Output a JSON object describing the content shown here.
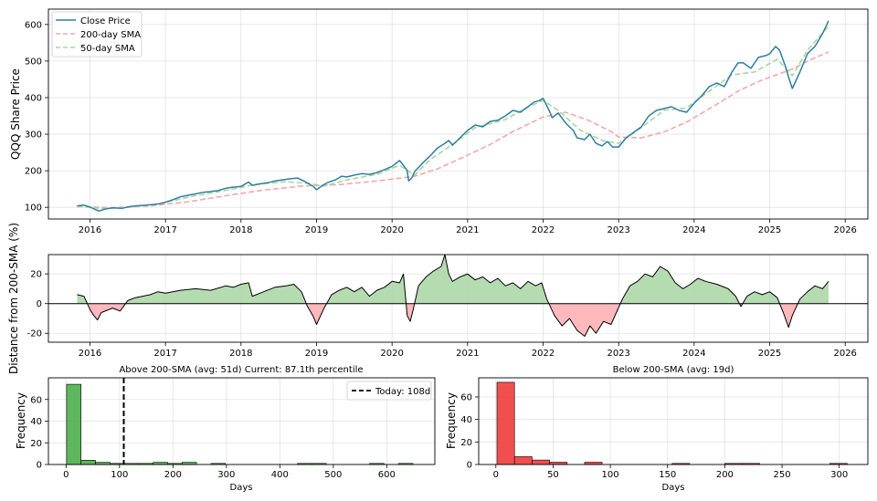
{
  "chart_data": [
    {
      "id": "price",
      "type": "line",
      "ylabel": "QQQ Share Price",
      "x_ticks": [
        "2016",
        "2017",
        "2018",
        "2019",
        "2020",
        "2021",
        "2022",
        "2023",
        "2024",
        "2025",
        "2026"
      ],
      "y_ticks": [
        100,
        200,
        300,
        400,
        500,
        600
      ],
      "xlim": [
        2015.45,
        2026.3
      ],
      "ylim": [
        68,
        642
      ],
      "grid": true,
      "legend_position": "top-left",
      "colors": {
        "close": "#2e7f9f",
        "sma200": "#f4a7ad",
        "sma50": "#a8d5a2"
      },
      "series": [
        {
          "name": "Close Price",
          "key": "close",
          "x": [
            2015.83,
            2015.92,
            2016.0,
            2016.08,
            2016.12,
            2016.2,
            2016.3,
            2016.42,
            2016.5,
            2016.6,
            2016.75,
            2016.85,
            2016.92,
            2017.0,
            2017.1,
            2017.2,
            2017.3,
            2017.4,
            2017.5,
            2017.6,
            2017.7,
            2017.8,
            2017.9,
            2018.0,
            2018.1,
            2018.15,
            2018.25,
            2018.35,
            2018.45,
            2018.55,
            2018.65,
            2018.75,
            2018.85,
            2018.95,
            2019.0,
            2019.08,
            2019.15,
            2019.25,
            2019.33,
            2019.4,
            2019.5,
            2019.6,
            2019.7,
            2019.8,
            2019.9,
            2020.0,
            2020.1,
            2020.15,
            2020.2,
            2020.22,
            2020.26,
            2020.3,
            2020.4,
            2020.5,
            2020.6,
            2020.7,
            2020.75,
            2020.8,
            2020.9,
            2021.0,
            2021.1,
            2021.2,
            2021.3,
            2021.4,
            2021.5,
            2021.6,
            2021.7,
            2021.8,
            2021.88,
            2021.95,
            2022.0,
            2022.08,
            2022.12,
            2022.2,
            2022.3,
            2022.4,
            2022.45,
            2022.55,
            2022.62,
            2022.7,
            2022.78,
            2022.85,
            2022.92,
            2023.0,
            2023.1,
            2023.2,
            2023.3,
            2023.4,
            2023.5,
            2023.6,
            2023.7,
            2023.8,
            2023.9,
            2024.0,
            2024.1,
            2024.2,
            2024.3,
            2024.4,
            2024.5,
            2024.58,
            2024.65,
            2024.75,
            2024.85,
            2024.95,
            2025.0,
            2025.08,
            2025.13,
            2025.2,
            2025.26,
            2025.3,
            2025.4,
            2025.5,
            2025.6,
            2025.7,
            2025.78
          ],
          "y": [
            104,
            106,
            101,
            93,
            90,
            95,
            99,
            97,
            101,
            104,
            106,
            108,
            110,
            114,
            121,
            129,
            133,
            137,
            141,
            143,
            146,
            152,
            155,
            157,
            169,
            160,
            164,
            167,
            172,
            175,
            178,
            180,
            170,
            158,
            148,
            160,
            168,
            175,
            185,
            183,
            188,
            192,
            190,
            195,
            203,
            212,
            228,
            215,
            200,
            172,
            180,
            198,
            220,
            240,
            262,
            275,
            283,
            270,
            290,
            310,
            325,
            320,
            335,
            338,
            350,
            365,
            360,
            375,
            388,
            392,
            398,
            365,
            345,
            358,
            330,
            310,
            290,
            285,
            300,
            275,
            268,
            280,
            265,
            265,
            290,
            305,
            320,
            350,
            365,
            370,
            375,
            365,
            360,
            385,
            405,
            430,
            440,
            430,
            470,
            495,
            495,
            480,
            510,
            515,
            520,
            540,
            530,
            490,
            450,
            425,
            470,
            520,
            540,
            575,
            610
          ]
        },
        {
          "name": "200-day SMA",
          "key": "sma200",
          "x": [
            2015.83,
            2016.3,
            2016.8,
            2017.3,
            2017.8,
            2018.3,
            2018.8,
            2019.3,
            2019.8,
            2020.3,
            2020.6,
            2020.9,
            2021.3,
            2021.6,
            2022.0,
            2022.3,
            2022.6,
            2022.9,
            2023.0,
            2023.3,
            2023.6,
            2023.9,
            2024.3,
            2024.6,
            2024.9,
            2025.3,
            2025.5,
            2025.78
          ],
          "y": [
            102,
            99,
            104,
            115,
            132,
            147,
            158,
            162,
            172,
            185,
            205,
            233,
            272,
            307,
            347,
            360,
            338,
            307,
            292,
            290,
            306,
            333,
            382,
            420,
            448,
            478,
            500,
            525
          ]
        },
        {
          "name": "50-day SMA",
          "key": "sma50",
          "x": [
            2015.83,
            2016.2,
            2016.5,
            2016.9,
            2017.4,
            2017.9,
            2018.2,
            2018.6,
            2018.9,
            2019.1,
            2019.4,
            2019.8,
            2020.1,
            2020.3,
            2020.5,
            2020.8,
            2021.1,
            2021.5,
            2021.8,
            2022.0,
            2022.2,
            2022.5,
            2022.8,
            2023.0,
            2023.3,
            2023.6,
            2023.9,
            2024.2,
            2024.5,
            2024.8,
            2025.1,
            2025.3,
            2025.5,
            2025.78
          ],
          "y": [
            103,
            96,
            100,
            109,
            132,
            150,
            163,
            170,
            165,
            158,
            175,
            190,
            215,
            188,
            230,
            272,
            318,
            340,
            375,
            392,
            365,
            310,
            282,
            275,
            318,
            365,
            372,
            418,
            462,
            470,
            505,
            460,
            530,
            595
          ]
        }
      ]
    },
    {
      "id": "distance",
      "type": "area",
      "ylabel": "Distance from 200-SMA (%)",
      "x_ticks": [
        "2016",
        "2017",
        "2018",
        "2019",
        "2020",
        "2021",
        "2022",
        "2023",
        "2024",
        "2025",
        "2026"
      ],
      "y_ticks": [
        -20,
        0,
        20
      ],
      "xlim": [
        2015.45,
        2026.3
      ],
      "ylim": [
        -26,
        33
      ],
      "grid": true,
      "colors": {
        "positive": "#a8d5a2",
        "negative": "#ffadb2",
        "line": "#000000"
      },
      "series": [
        {
          "name": "Distance",
          "x": [
            2015.83,
            2015.92,
            2016.0,
            2016.05,
            2016.1,
            2016.15,
            2016.3,
            2016.4,
            2016.5,
            2016.6,
            2016.8,
            2016.9,
            2017.0,
            2017.2,
            2017.4,
            2017.6,
            2017.8,
            2017.9,
            2018.0,
            2018.1,
            2018.15,
            2018.3,
            2018.45,
            2018.6,
            2018.7,
            2018.8,
            2018.88,
            2018.95,
            2019.0,
            2019.1,
            2019.2,
            2019.3,
            2019.4,
            2019.5,
            2019.6,
            2019.7,
            2019.8,
            2019.9,
            2020.0,
            2020.1,
            2020.15,
            2020.2,
            2020.24,
            2020.28,
            2020.35,
            2020.45,
            2020.55,
            2020.65,
            2020.7,
            2020.75,
            2020.8,
            2020.9,
            2021.0,
            2021.1,
            2021.2,
            2021.3,
            2021.4,
            2021.5,
            2021.6,
            2021.7,
            2021.8,
            2021.9,
            2021.98,
            2022.05,
            2022.15,
            2022.25,
            2022.35,
            2022.45,
            2022.55,
            2022.62,
            2022.7,
            2022.8,
            2022.9,
            2022.97,
            2023.05,
            2023.15,
            2023.25,
            2023.35,
            2023.45,
            2023.55,
            2023.65,
            2023.75,
            2023.85,
            2023.95,
            2024.05,
            2024.15,
            2024.3,
            2024.45,
            2024.55,
            2024.62,
            2024.7,
            2024.8,
            2024.9,
            2025.0,
            2025.1,
            2025.18,
            2025.25,
            2025.3,
            2025.4,
            2025.5,
            2025.6,
            2025.7,
            2025.78
          ],
          "y": [
            6,
            5,
            -4,
            -8,
            -11,
            -6,
            -3,
            -5,
            2,
            4,
            6,
            8,
            7,
            9,
            10,
            9,
            12,
            11,
            13,
            14,
            5,
            8,
            11,
            12,
            13,
            8,
            -2,
            -8,
            -14,
            -3,
            6,
            9,
            11,
            8,
            11,
            5,
            9,
            11,
            15,
            14,
            20,
            -8,
            -12,
            -4,
            12,
            18,
            22,
            25,
            33,
            20,
            15,
            18,
            20,
            16,
            18,
            14,
            17,
            12,
            14,
            10,
            15,
            12,
            14,
            3,
            -8,
            -15,
            -10,
            -18,
            -22,
            -15,
            -20,
            -12,
            -14,
            -6,
            3,
            12,
            15,
            20,
            18,
            25,
            22,
            14,
            10,
            13,
            17,
            15,
            13,
            10,
            5,
            -2,
            5,
            8,
            6,
            8,
            4,
            -6,
            -16,
            -8,
            3,
            8,
            12,
            10,
            15
          ]
        }
      ]
    },
    {
      "id": "hist_above",
      "type": "bar",
      "title": "Above 200-SMA (avg: 51d) Current: 87.1th percentile",
      "xlabel": "Days",
      "ylabel": "Frequency",
      "x_ticks": [
        0,
        100,
        200,
        300,
        400,
        500,
        600
      ],
      "y_ticks": [
        0,
        20,
        40,
        60
      ],
      "xlim": [
        -33,
        690
      ],
      "ylim": [
        0,
        80
      ],
      "bin_width": 27,
      "bin_starts": [
        1,
        28,
        55,
        82,
        109,
        136,
        163,
        190,
        217,
        244,
        271,
        298,
        325,
        352,
        379,
        406,
        433,
        460,
        487,
        514,
        541,
        568,
        595,
        622,
        649
      ],
      "values": [
        74,
        4,
        2,
        1,
        1,
        1,
        2,
        1,
        2,
        0,
        1,
        0,
        0,
        0,
        0,
        0,
        1,
        1,
        0,
        0,
        0,
        1,
        0,
        1,
        0
      ],
      "color": "#4daf4a",
      "marker": {
        "label": "Today: 108d",
        "value": 108
      },
      "legend_position": "top-right"
    },
    {
      "id": "hist_below",
      "type": "bar",
      "title": "Below 200-SMA (avg: 19d)",
      "xlabel": "Days",
      "ylabel": "Frequency",
      "x_ticks": [
        0,
        50,
        100,
        150,
        200,
        250,
        300
      ],
      "y_ticks": [
        0,
        20,
        40,
        60
      ],
      "xlim": [
        -15,
        325
      ],
      "ylim": [
        0,
        77
      ],
      "bin_width": 15.3,
      "bin_starts": [
        1,
        16.3,
        31.6,
        46.9,
        62.2,
        77.5,
        92.8,
        108.1,
        123.4,
        138.7,
        154,
        169.3,
        184.6,
        199.9,
        215.2,
        230.5,
        245.8,
        261.1,
        276.4,
        291.7
      ],
      "values": [
        73,
        7,
        4,
        2,
        0,
        2,
        0,
        0,
        0,
        0,
        1,
        0,
        0,
        1,
        1,
        0,
        0,
        0,
        0,
        1
      ],
      "color": "#f03c3c"
    }
  ]
}
